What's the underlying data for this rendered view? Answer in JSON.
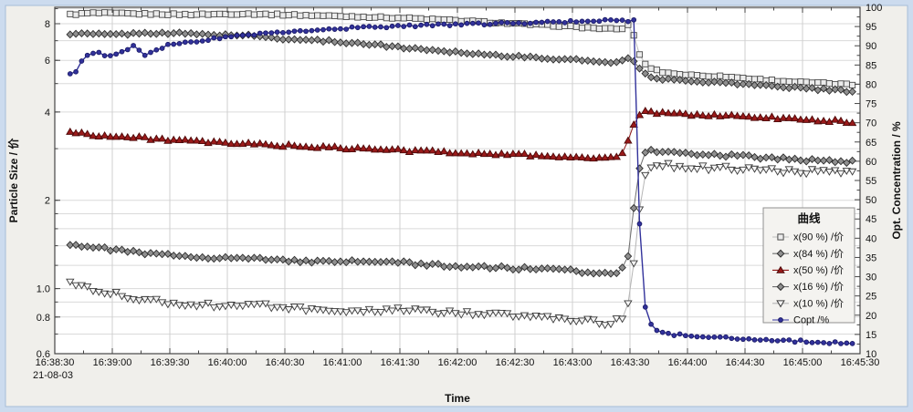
{
  "frame": {
    "outer_color": "#ccdbee",
    "outer_edge": "#a6bcd8",
    "panel_color": "#f0efeb",
    "plot_bg": "#ffffff",
    "border_color": "#454545",
    "grid_v_color": "#cfcfcf",
    "grid_h_color": "#dadada",
    "legend_bg": "#f4f3f0",
    "legend_border": "#8f8f8f"
  },
  "chart_data": {
    "type": "line",
    "title": "",
    "xlabel": "Time",
    "x_date": "21-08-03",
    "ylabel_left": "Particle Size / 价",
    "ylabel_right": "Opt. Concentration / %",
    "x_axis": {
      "span_seconds": 420,
      "major_step_seconds": 30,
      "minor_step_seconds": 15,
      "tick_labels": [
        "16:38:30",
        "16:39:00",
        "16:39:30",
        "16:40:00",
        "16:40:30",
        "16:41:00",
        "16:41:30",
        "16:42:00",
        "16:42:30",
        "16:43:00",
        "16:43:30",
        "16:44:00",
        "16:44:30",
        "16:45:00",
        "16:45:30"
      ]
    },
    "y_left": {
      "scale": "log",
      "min": 0.6,
      "max": 9.1,
      "tick_labels": [
        "8",
        "6",
        "4",
        "2",
        "1.0",
        "0.8",
        "0.6"
      ],
      "tick_values": [
        8,
        6,
        4,
        2,
        1,
        0.8,
        0.6
      ],
      "gridline_values": [
        0.7,
        0.8,
        0.9,
        1,
        1.2,
        1.4,
        1.6,
        1.8,
        2,
        3,
        4,
        5,
        6,
        7,
        8,
        9
      ]
    },
    "y_right": {
      "min": 10,
      "max": 100,
      "major_step": 5,
      "minor_step": 2.5,
      "tick_labels": [
        "100",
        "95",
        "90",
        "85",
        "80",
        "75",
        "70",
        "65",
        "60",
        "55",
        "50",
        "45",
        "40",
        "35",
        "30",
        "25",
        "20",
        "15",
        "10"
      ]
    },
    "legend": {
      "title": "曲线"
    },
    "event_time_label": "16:43:30",
    "series": [
      {
        "name": "x(90 %) /价",
        "axis": "left",
        "marker": "square",
        "fill": "#ececec",
        "stroke": "#4a4a4a",
        "line": "#bdbdbd",
        "noise": 0.006,
        "keypoints": [
          [
            8,
            8.6
          ],
          [
            20,
            8.7
          ],
          [
            40,
            8.65
          ],
          [
            70,
            8.6
          ],
          [
            100,
            8.65
          ],
          [
            130,
            8.55
          ],
          [
            160,
            8.45
          ],
          [
            185,
            8.35
          ],
          [
            210,
            8.2
          ],
          [
            240,
            8.0
          ],
          [
            265,
            7.85
          ],
          [
            285,
            7.7
          ],
          [
            295,
            7.65
          ],
          [
            299,
            7.9
          ],
          [
            302,
            7.3
          ],
          [
            305,
            6.3
          ],
          [
            308,
            5.8
          ],
          [
            312,
            5.6
          ],
          [
            318,
            5.45
          ],
          [
            330,
            5.35
          ],
          [
            350,
            5.28
          ],
          [
            370,
            5.15
          ],
          [
            390,
            5.05
          ],
          [
            405,
            5.0
          ],
          [
            416,
            4.95
          ]
        ]
      },
      {
        "name": "x(84 %) /价",
        "axis": "left",
        "marker": "diamond",
        "fill": "#8f8f8f",
        "stroke": "#2e2e2e",
        "line": "#6f6f6f",
        "noise": 0.008,
        "keypoints": [
          [
            8,
            7.4
          ],
          [
            30,
            7.35
          ],
          [
            55,
            7.45
          ],
          [
            80,
            7.35
          ],
          [
            100,
            7.3
          ],
          [
            120,
            7.1
          ],
          [
            140,
            7.0
          ],
          [
            160,
            6.85
          ],
          [
            185,
            6.6
          ],
          [
            210,
            6.4
          ],
          [
            230,
            6.25
          ],
          [
            255,
            6.1
          ],
          [
            275,
            6.0
          ],
          [
            293,
            5.9
          ],
          [
            299,
            6.15
          ],
          [
            303,
            5.9
          ],
          [
            307,
            5.4
          ],
          [
            312,
            5.25
          ],
          [
            320,
            5.15
          ],
          [
            335,
            5.1
          ],
          [
            355,
            5.0
          ],
          [
            375,
            4.9
          ],
          [
            395,
            4.8
          ],
          [
            416,
            4.7
          ]
        ]
      },
      {
        "name": "x(50 %) /价",
        "axis": "left",
        "marker": "triangle-up",
        "fill": "#9a1a1a",
        "stroke": "#4d0a0a",
        "line": "#8e1616",
        "noise": 0.011,
        "keypoints": [
          [
            8,
            3.42
          ],
          [
            25,
            3.32
          ],
          [
            50,
            3.25
          ],
          [
            80,
            3.15
          ],
          [
            110,
            3.1
          ],
          [
            140,
            3.03
          ],
          [
            170,
            2.98
          ],
          [
            200,
            2.93
          ],
          [
            230,
            2.88
          ],
          [
            260,
            2.83
          ],
          [
            285,
            2.78
          ],
          [
            294,
            2.8
          ],
          [
            298,
            3.0
          ],
          [
            301,
            3.5
          ],
          [
            304,
            3.9
          ],
          [
            307,
            4.0
          ],
          [
            315,
            3.97
          ],
          [
            330,
            3.93
          ],
          [
            350,
            3.88
          ],
          [
            375,
            3.82
          ],
          [
            400,
            3.75
          ],
          [
            416,
            3.7
          ]
        ]
      },
      {
        "name": "x(16 %) /价",
        "axis": "left",
        "marker": "diamond",
        "fill": "#8f8f8f",
        "stroke": "#2e2e2e",
        "line": "#6f6f6f",
        "noise": 0.012,
        "keypoints": [
          [
            8,
            1.42
          ],
          [
            25,
            1.37
          ],
          [
            50,
            1.31
          ],
          [
            80,
            1.28
          ],
          [
            110,
            1.26
          ],
          [
            140,
            1.23
          ],
          [
            170,
            1.24
          ],
          [
            200,
            1.2
          ],
          [
            230,
            1.18
          ],
          [
            260,
            1.16
          ],
          [
            285,
            1.13
          ],
          [
            295,
            1.14
          ],
          [
            299,
            1.3
          ],
          [
            302,
            1.9
          ],
          [
            305,
            2.6
          ],
          [
            308,
            2.9
          ],
          [
            312,
            2.95
          ],
          [
            325,
            2.9
          ],
          [
            345,
            2.86
          ],
          [
            370,
            2.8
          ],
          [
            395,
            2.74
          ],
          [
            416,
            2.7
          ]
        ]
      },
      {
        "name": "x(10 %) /价",
        "axis": "left",
        "marker": "triangle-down",
        "fill": "#f5f5f5",
        "stroke": "#3a3a3a",
        "line": "#b5b5b5",
        "noise": 0.02,
        "keypoints": [
          [
            8,
            1.05
          ],
          [
            20,
            1.0
          ],
          [
            40,
            0.93
          ],
          [
            65,
            0.89
          ],
          [
            90,
            0.87
          ],
          [
            110,
            0.88
          ],
          [
            130,
            0.85
          ],
          [
            150,
            0.82
          ],
          [
            175,
            0.85
          ],
          [
            200,
            0.83
          ],
          [
            225,
            0.82
          ],
          [
            250,
            0.8
          ],
          [
            275,
            0.78
          ],
          [
            288,
            0.76
          ],
          [
            297,
            0.8
          ],
          [
            301,
            1.0
          ],
          [
            304,
            1.6
          ],
          [
            307,
            2.3
          ],
          [
            310,
            2.6
          ],
          [
            315,
            2.65
          ],
          [
            330,
            2.6
          ],
          [
            350,
            2.57
          ],
          [
            375,
            2.53
          ],
          [
            400,
            2.5
          ],
          [
            416,
            2.47
          ]
        ]
      },
      {
        "name": "Copt /%",
        "axis": "right",
        "marker": "circle",
        "fill": "#32329b",
        "stroke": "#1a1a66",
        "line": "#32329b",
        "noise": 0.3,
        "keypoints": [
          [
            8,
            82.5
          ],
          [
            12,
            83.2
          ],
          [
            15,
            87.5
          ],
          [
            22,
            88.2
          ],
          [
            30,
            87.0
          ],
          [
            36,
            88.8
          ],
          [
            42,
            90.0
          ],
          [
            47,
            87.3
          ],
          [
            52,
            88.5
          ],
          [
            60,
            90.3
          ],
          [
            70,
            91.0
          ],
          [
            85,
            92.0
          ],
          [
            100,
            92.8
          ],
          [
            120,
            93.7
          ],
          [
            140,
            94.3
          ],
          [
            160,
            94.8
          ],
          [
            180,
            95.1
          ],
          [
            200,
            95.4
          ],
          [
            225,
            95.7
          ],
          [
            250,
            96.0
          ],
          [
            270,
            96.3
          ],
          [
            290,
            96.5
          ],
          [
            302,
            96.6
          ],
          [
            304,
            60
          ],
          [
            306,
            28
          ],
          [
            309,
            19.5
          ],
          [
            312,
            16.5
          ],
          [
            316,
            15.4
          ],
          [
            324,
            14.9
          ],
          [
            335,
            14.5
          ],
          [
            350,
            14.1
          ],
          [
            365,
            13.8
          ],
          [
            385,
            13.3
          ],
          [
            405,
            12.9
          ],
          [
            416,
            12.7
          ]
        ]
      }
    ]
  }
}
